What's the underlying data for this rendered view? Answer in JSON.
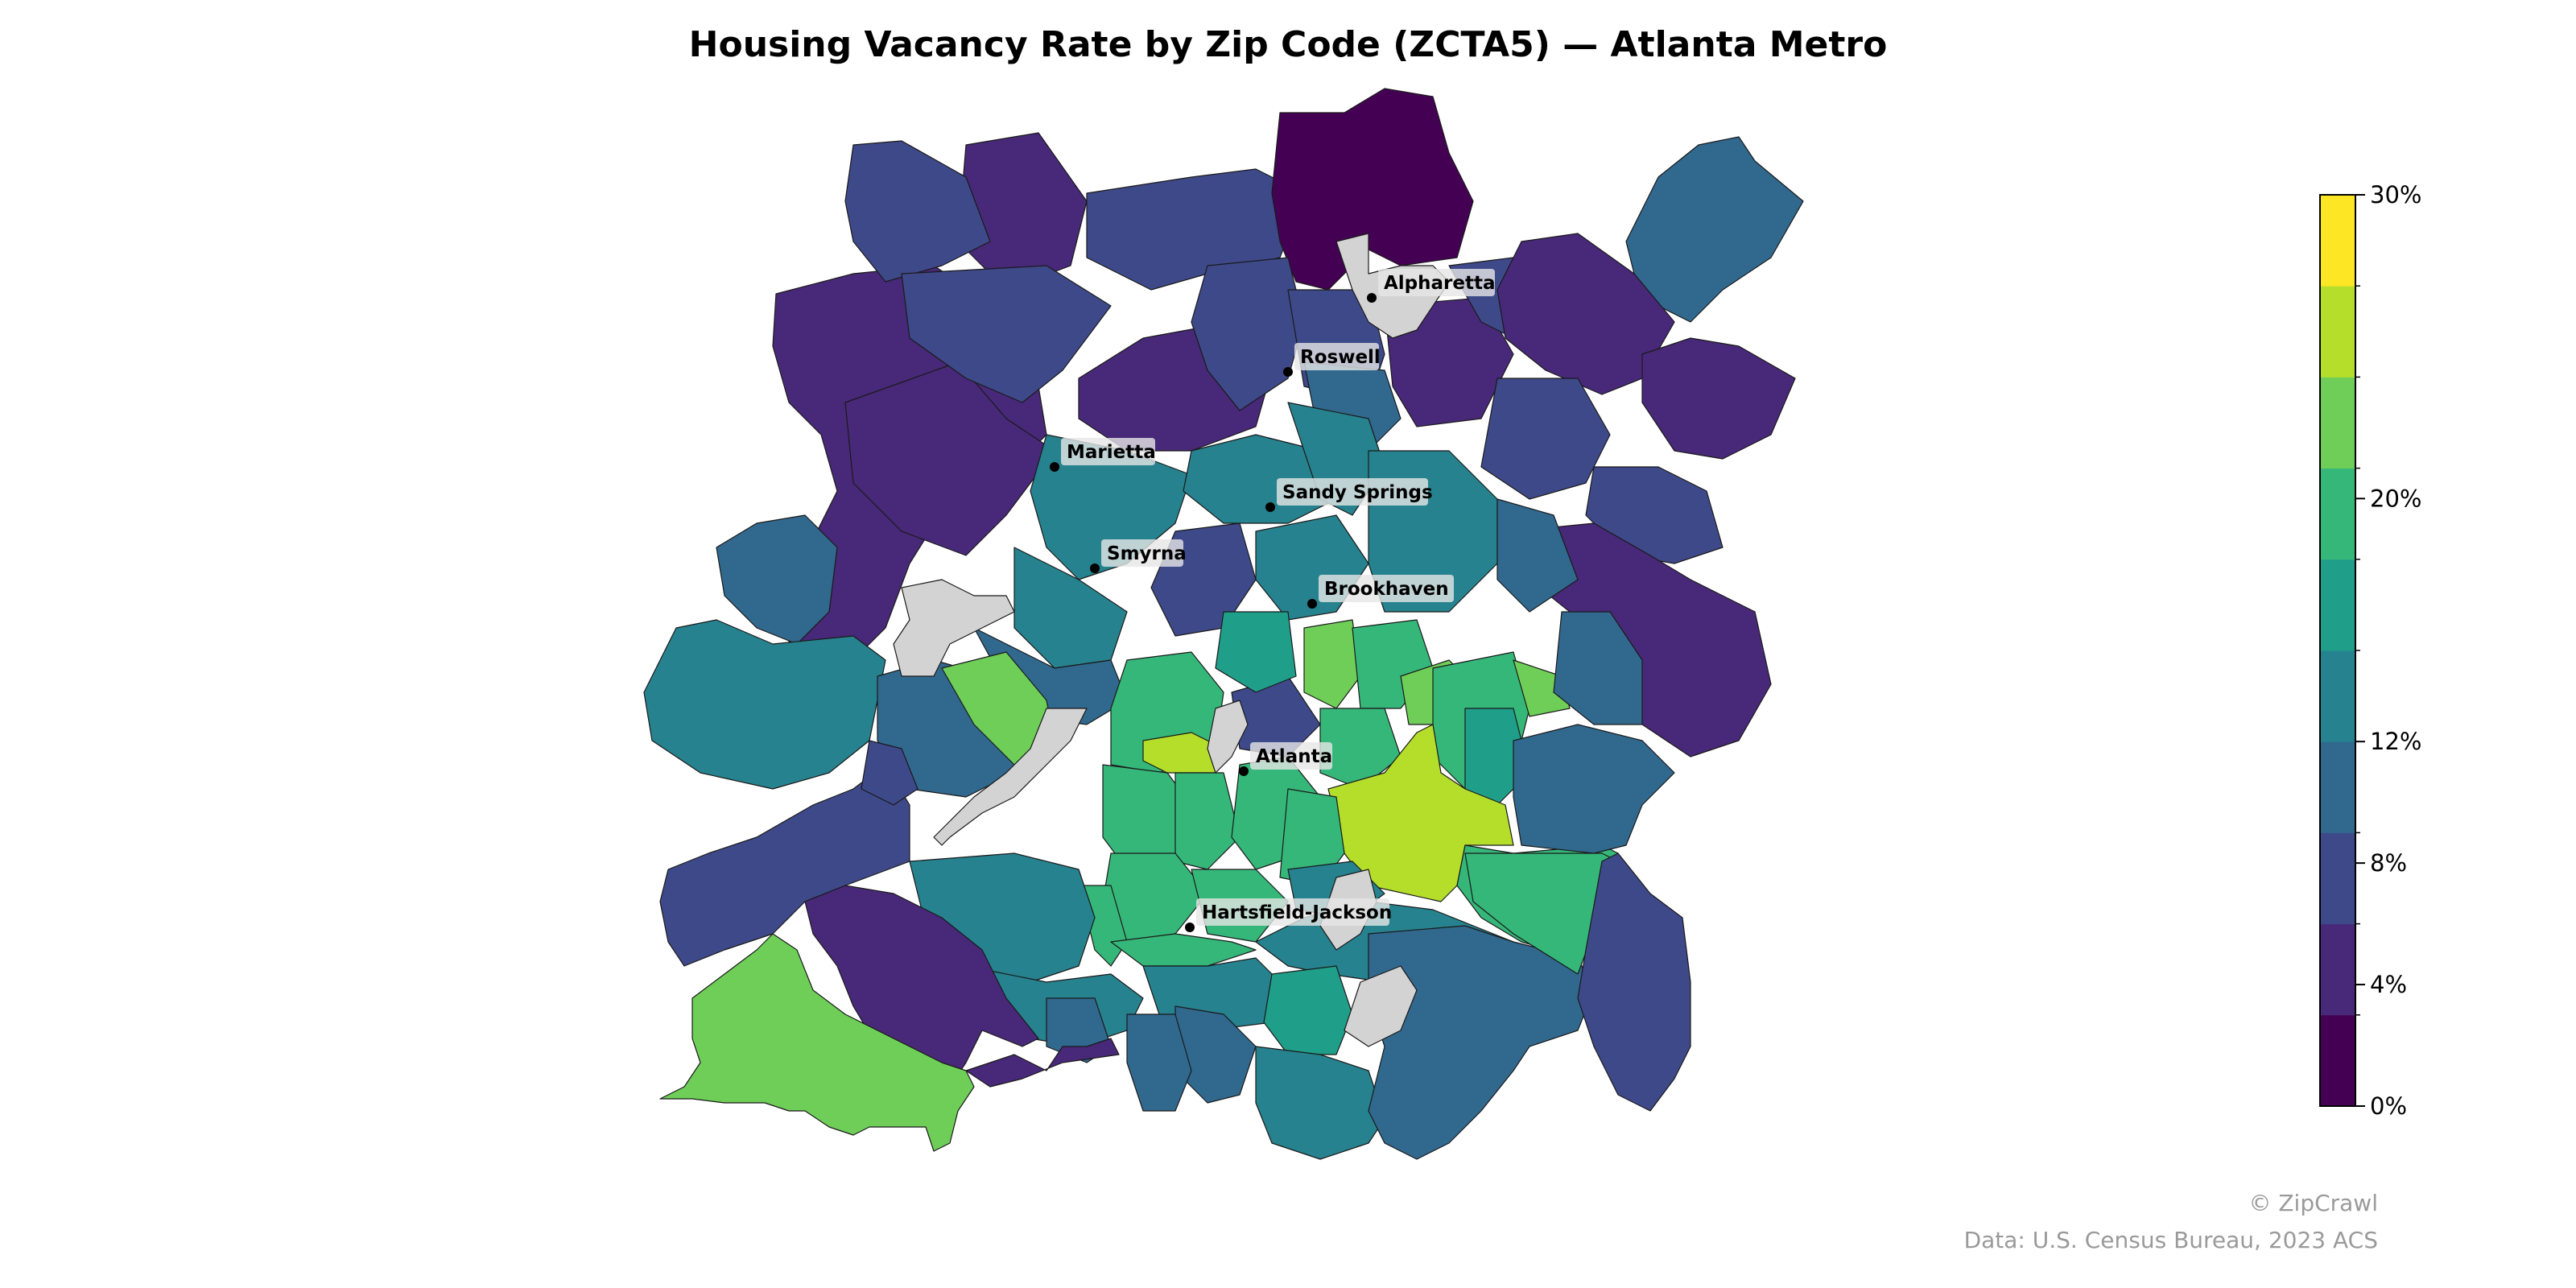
{
  "title": "Housing Vacancy Rate by Zip Code (ZCTA5) — Atlanta Metro",
  "cities": [
    {
      "name": "Alpharetta"
    },
    {
      "name": "Roswell"
    },
    {
      "name": "Marietta"
    },
    {
      "name": "Sandy Springs"
    },
    {
      "name": "Smyrna"
    },
    {
      "name": "Brookhaven"
    },
    {
      "name": "Atlanta"
    },
    {
      "name": "Hartsfield-Jackson"
    }
  ],
  "colorbar": {
    "min": 0,
    "max": 30,
    "step": 3,
    "ticks": [
      "0%",
      "4%",
      "8%",
      "12%",
      "20%",
      "30%"
    ],
    "colors": [
      "#440154",
      "#482878",
      "#3e4989",
      "#31688e",
      "#26828e",
      "#1f9e89",
      "#35b779",
      "#6ece58",
      "#b5de2b",
      "#fde725"
    ]
  },
  "no_data_color": "#d3d3d3",
  "credits": {
    "brand": "© ZipCrawl",
    "source": "Data: U.S. Census Bureau, 2023 ACS"
  }
}
